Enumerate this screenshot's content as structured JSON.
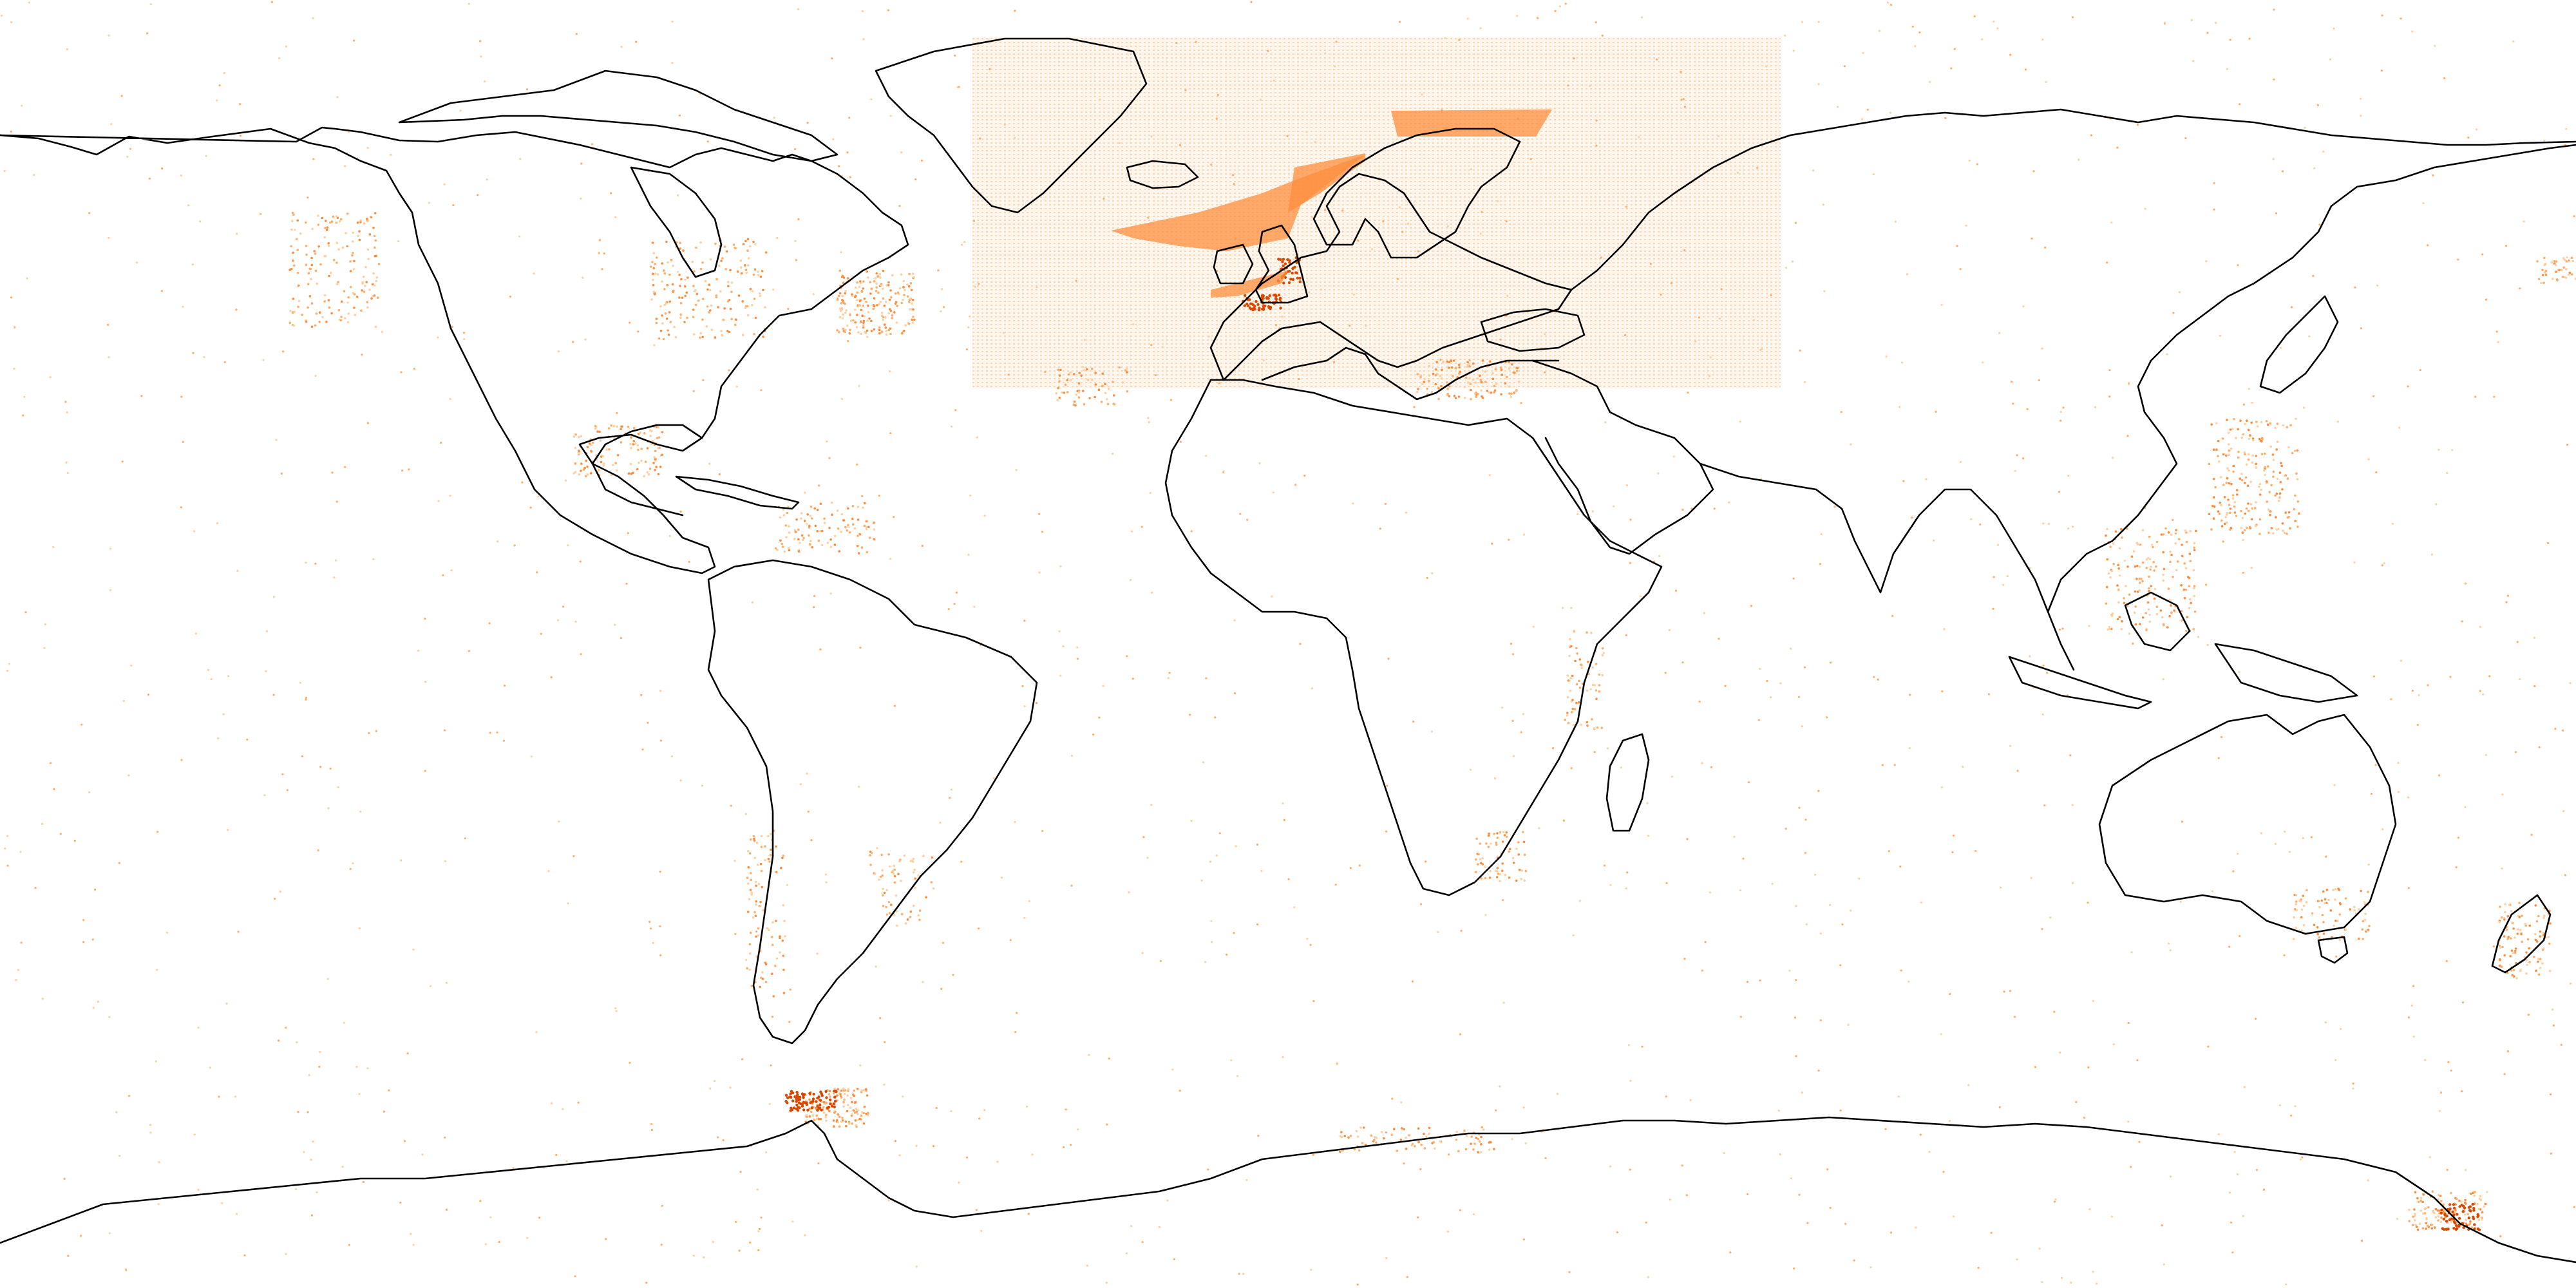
{
  "map": {
    "projection": "equirectangular",
    "extent": {
      "lon": [
        -180,
        180
      ],
      "lat": [
        -90,
        90
      ]
    },
    "basemap": "coastlines",
    "colors": {
      "background": "#ffffff",
      "coastline": "#000000",
      "point_light": "#fdd0a2",
      "point_mid": "#fdae6b",
      "point_dark": "#fd8d3c",
      "point_darkest": "#d94801",
      "grid_block": "#fdae6b"
    },
    "layers": [
      {
        "name": "occurrence-points",
        "kind": "scatter",
        "color": "#fd8d3c"
      },
      {
        "name": "gridded-survey-block",
        "kind": "raster-grid",
        "lon": [
          -44,
          68
        ],
        "lat": [
          35,
          85
        ],
        "color": "#fdae6b"
      },
      {
        "name": "dense-polygons",
        "kind": "filled-areas",
        "color": "#fd8d3c"
      }
    ]
  }
}
